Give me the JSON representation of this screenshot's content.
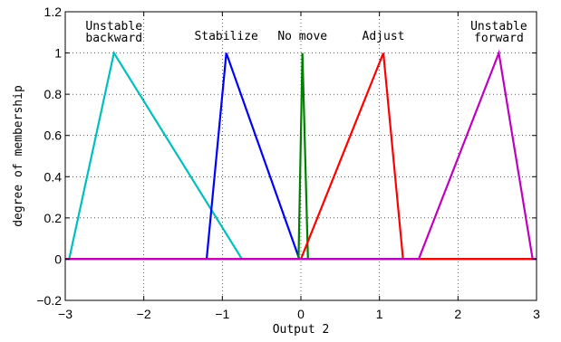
{
  "chart_data": {
    "type": "line",
    "title": "",
    "xlabel": "Output 2",
    "ylabel": "degree of membership",
    "xlim": [
      -3,
      3
    ],
    "ylim": [
      -0.2,
      1.2
    ],
    "xticks": [
      -3,
      -2,
      -1,
      0,
      1,
      2,
      3
    ],
    "yticks": [
      -0.2,
      0,
      0.2,
      0.4,
      0.6,
      0.8,
      1,
      1.2
    ],
    "grid": true,
    "series": [
      {
        "name": "Unstable backward",
        "label_lines": [
          "Unstable",
          "backward"
        ],
        "color": "#00bfbf",
        "x": [
          -3,
          -2.95,
          -2.38,
          -0.75,
          3
        ],
        "y": [
          0,
          0,
          1,
          0,
          0
        ]
      },
      {
        "name": "Stabilize",
        "label_lines": [
          "Stabilize"
        ],
        "color": "#0000ff",
        "x": [
          -3,
          -1.2,
          -0.95,
          -0.02,
          3
        ],
        "y": [
          0,
          0,
          1,
          0,
          0
        ]
      },
      {
        "name": "No move",
        "label_lines": [
          "No move"
        ],
        "color": "#008000",
        "x": [
          -3,
          -0.03,
          0.02,
          0.09,
          3
        ],
        "y": [
          0,
          0,
          1,
          0,
          0
        ]
      },
      {
        "name": "Adjust",
        "label_lines": [
          "Adjust"
        ],
        "color": "#ff0000",
        "x": [
          -3,
          0.0,
          1.05,
          1.3,
          3
        ],
        "y": [
          0,
          0,
          1,
          0,
          0
        ]
      },
      {
        "name": "Unstable forward",
        "label_lines": [
          "Unstable",
          "forward"
        ],
        "color": "#bf00bf",
        "x": [
          -3,
          1.5,
          2.52,
          2.95,
          3
        ],
        "y": [
          0,
          0,
          1,
          0,
          0
        ]
      }
    ]
  }
}
